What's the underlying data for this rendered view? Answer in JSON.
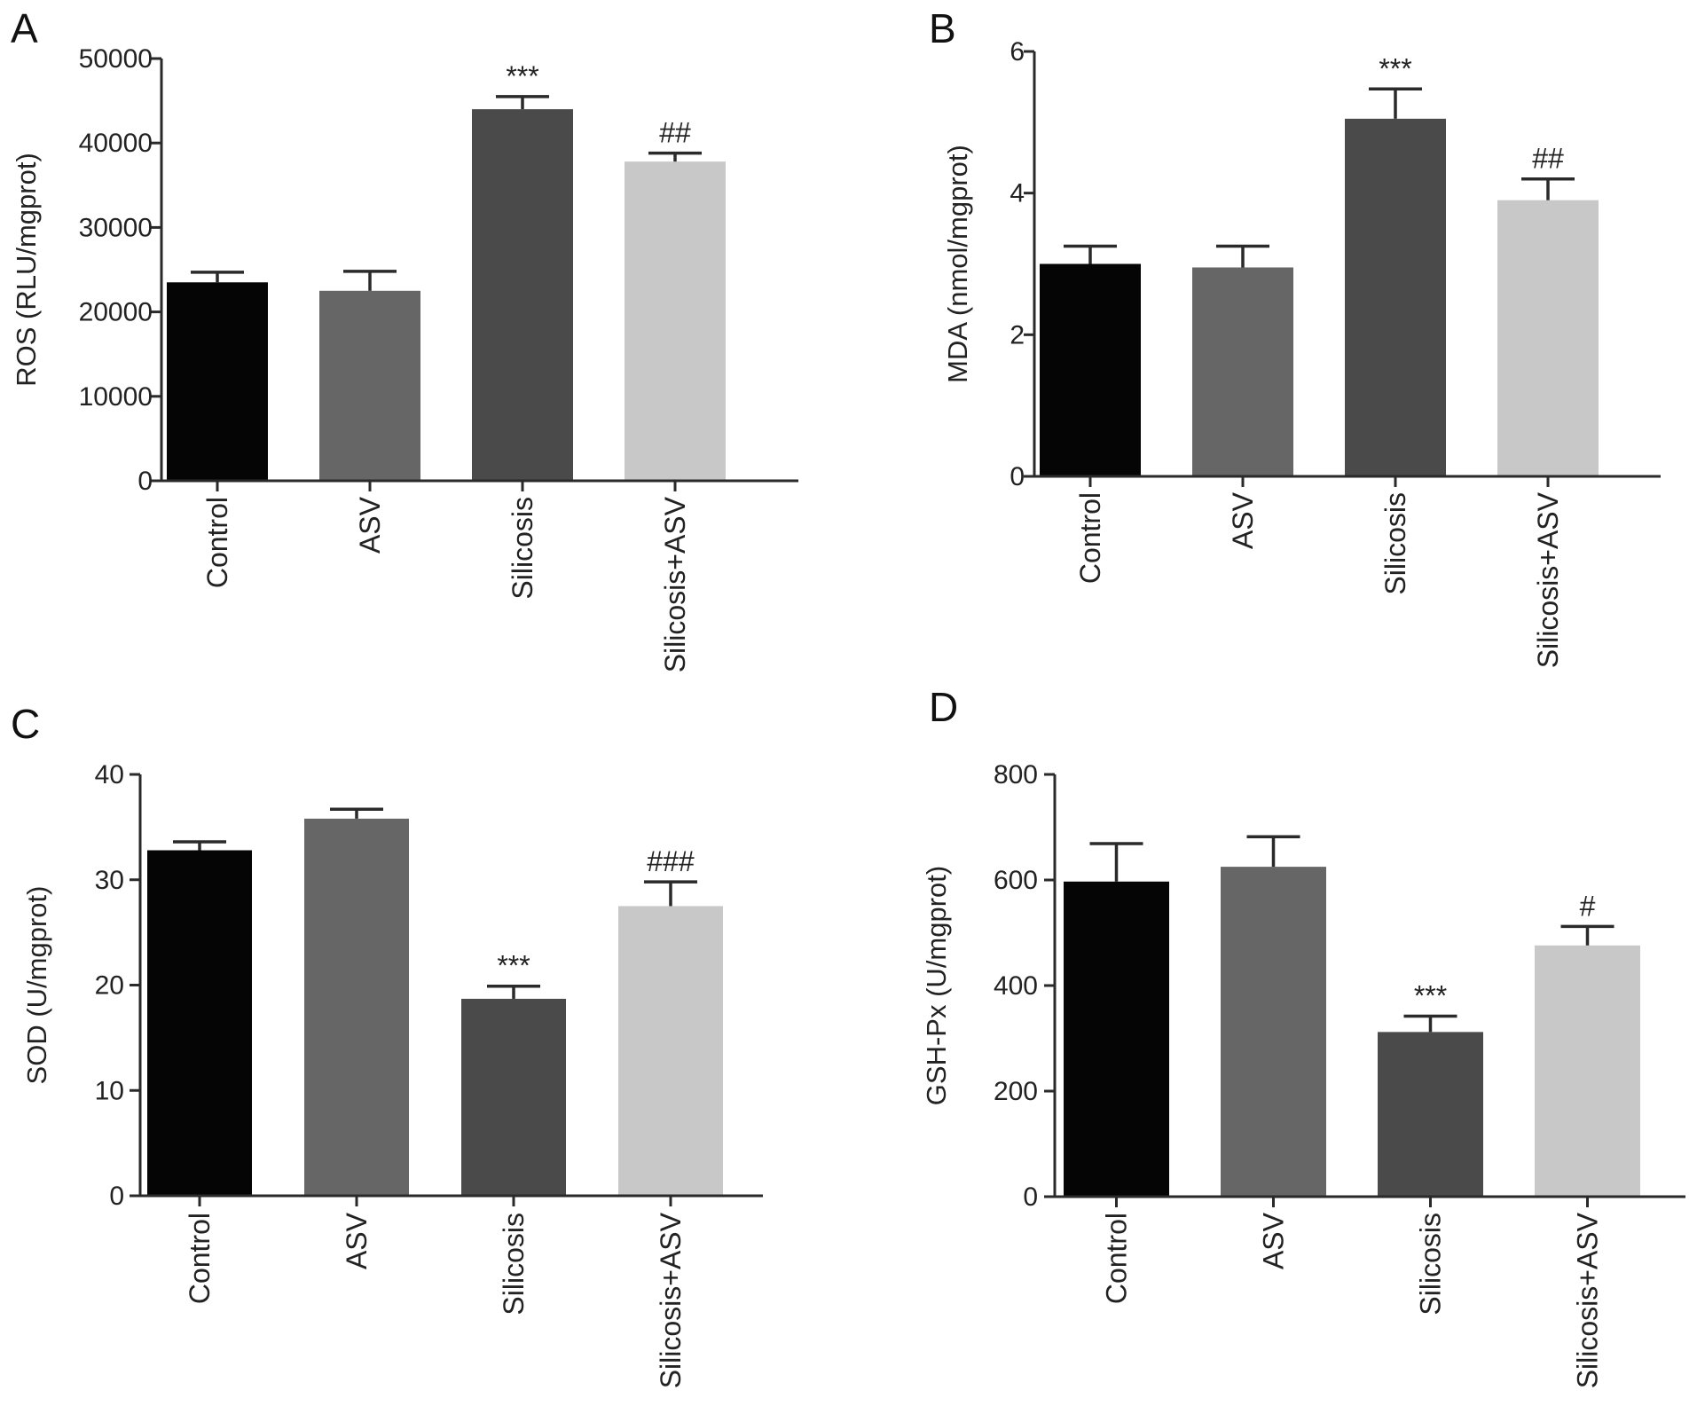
{
  "chart_data": [
    {
      "panel": "A",
      "type": "bar",
      "categories": [
        "Control",
        "ASV",
        "Silicosis",
        "Silicosis+ASV"
      ],
      "values": [
        23500,
        22500,
        44000,
        37800
      ],
      "errors": [
        1200,
        2300,
        1500,
        1000
      ],
      "annotations": [
        "",
        "",
        "***",
        "##"
      ],
      "ylabel": "ROS (RLU/mgprot)",
      "ylim": [
        0,
        50000
      ],
      "yticks": [
        0,
        10000,
        20000,
        30000,
        40000,
        50000
      ],
      "colors": [
        "#050505",
        "#666666",
        "#4a4a4a",
        "#c8c8c8"
      ]
    },
    {
      "panel": "B",
      "type": "bar",
      "categories": [
        "Control",
        "ASV",
        "Silicosis",
        "Silicosis+ASV"
      ],
      "values": [
        3.0,
        2.95,
        5.05,
        3.9
      ],
      "errors": [
        0.25,
        0.3,
        0.42,
        0.3
      ],
      "annotations": [
        "",
        "",
        "***",
        "##"
      ],
      "ylabel": "MDA (nmol/mgprot)",
      "ylim": [
        0,
        6
      ],
      "yticks": [
        0,
        2,
        4,
        6
      ],
      "colors": [
        "#050505",
        "#666666",
        "#4a4a4a",
        "#c8c8c8"
      ]
    },
    {
      "panel": "C",
      "type": "bar",
      "categories": [
        "Control",
        "ASV",
        "Silicosis",
        "Silicosis+ASV"
      ],
      "values": [
        32.8,
        35.8,
        18.7,
        27.5
      ],
      "errors": [
        0.8,
        0.9,
        1.2,
        2.3
      ],
      "annotations": [
        "",
        "",
        "***",
        "###"
      ],
      "ylabel": "SOD (U/mgprot)",
      "ylim": [
        0,
        40
      ],
      "yticks": [
        0,
        10,
        20,
        30,
        40
      ],
      "colors": [
        "#050505",
        "#666666",
        "#4a4a4a",
        "#c8c8c8"
      ]
    },
    {
      "panel": "D",
      "type": "bar",
      "categories": [
        "Control",
        "ASV",
        "Silicosis",
        "Silicosis+ASV"
      ],
      "values": [
        597,
        625,
        312,
        476
      ],
      "errors": [
        72,
        57,
        30,
        36
      ],
      "annotations": [
        "",
        "",
        "***",
        "#"
      ],
      "ylabel": "GSH-Px (U/mgprot)",
      "ylim": [
        0,
        800
      ],
      "yticks": [
        0,
        200,
        400,
        600,
        800
      ],
      "colors": [
        "#050505",
        "#666666",
        "#4a4a4a",
        "#c8c8c8"
      ]
    }
  ]
}
